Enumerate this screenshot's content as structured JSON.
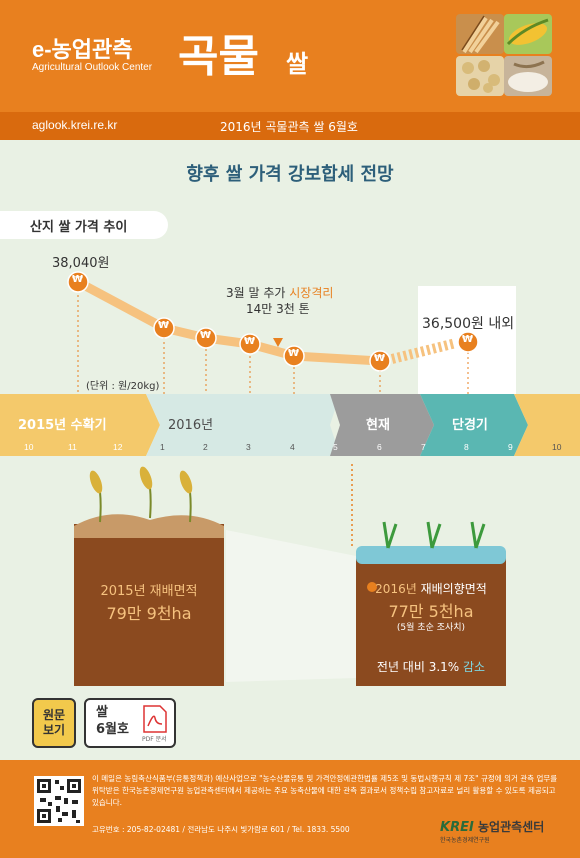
{
  "header": {
    "brand": "e-농업관측",
    "brand_sub": "Agricultural Outlook Center",
    "product": "곡물",
    "product_sub": "쌀",
    "thumbs": [
      "wheat-photo",
      "corn-photo",
      "soybean-photo",
      "rice-photo"
    ]
  },
  "subbar": {
    "site": "aglook.krei.re.kr",
    "issue": "2016년 곡물관측 쌀 6월호"
  },
  "headline": "향후 쌀 가격 강보합세 전망",
  "section_label": "산지 쌀 가격 추이",
  "price_chart": {
    "start_label": "38,040원",
    "forecast_label": "36,500원 내외",
    "note_line1_a": "3월 말 추가 ",
    "note_line1_b": "시장격리",
    "note_line2": "14만 3천 톤",
    "unit": "(단위 : 원/20kg)",
    "currency_symbol": "₩"
  },
  "timeline": {
    "segments": [
      "2015년 수확기",
      "2016년",
      "현재",
      "단경기"
    ],
    "ticks": [
      "10",
      "11",
      "12",
      "1",
      "2",
      "3",
      "4",
      "5",
      "6",
      "7",
      "8",
      "9",
      "10"
    ]
  },
  "area_2015": {
    "year": "2015년 ",
    "title": "재배면적",
    "value": "79만 9천ha"
  },
  "area_2016": {
    "year": "2016년 ",
    "title": "재배의향면적",
    "value": "77만 5천ha",
    "note": "(5월 초순 조사치)",
    "compare_a": "전년 대비 3.1% ",
    "compare_b": "감소"
  },
  "buttons": {
    "original_line1": "원문",
    "original_line2": "보기",
    "rice_line1": "쌀",
    "rice_line2": "6월호",
    "pdf_badge": "PDF",
    "pdf_caption": "PDF 문서"
  },
  "footer": {
    "text": "이 메일은 농림축산식품부(유통정책과) 예산사업으로 \"농수산물유통 및 가격안정에관한법률 제5조 및 동법시행규칙 제 7조\" 규정에 의거 관측 업무를 위탁받은 한국농촌경제연구원 농업관측센터에서 제공하는 주요 농축산물에 대한 관측 결과로서 정책수립 참고자료로 널리 활용할 수 있도록 제공되고 있습니다.",
    "address": "고유번호 : 205-82-02481  /  전라남도 나주시 빛가람로 601  /  Tel. 1833. 5500",
    "org_logo": "KREI",
    "org_sub": "한국농촌경제연구원",
    "org_name": "농업관측센터"
  },
  "colors": {
    "orange": "#e8801f",
    "dark_orange": "#d96a0e",
    "teal": "#5ab7b2",
    "gray": "#9c9c9c",
    "soil": "#8b4a1f"
  }
}
